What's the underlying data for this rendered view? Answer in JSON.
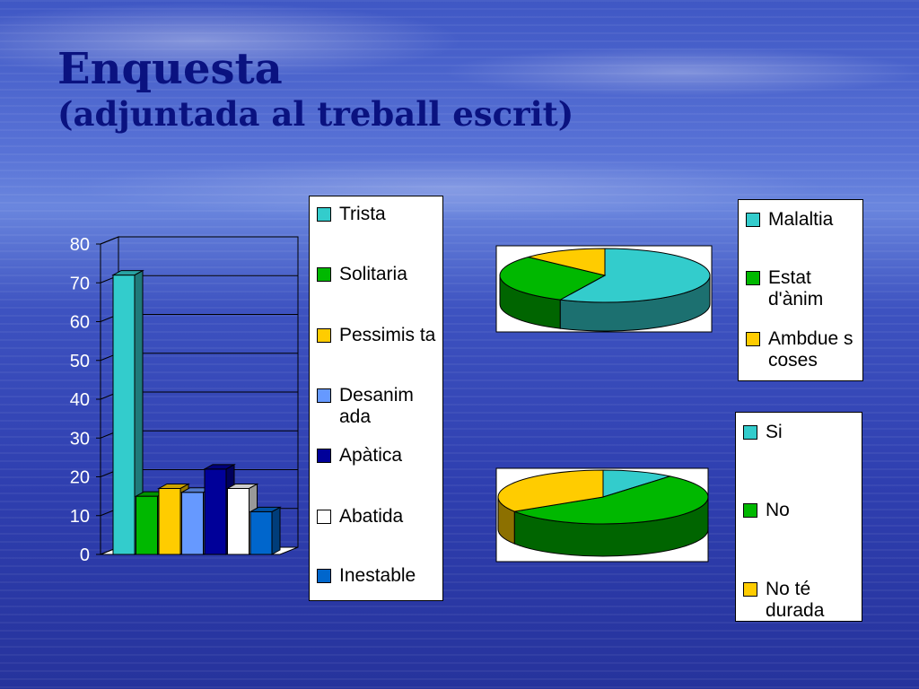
{
  "title": {
    "line1": "Enquesta",
    "line2": "(adjuntada al treball escrit)"
  },
  "chart_data": [
    {
      "type": "bar",
      "categories": [
        "Trista",
        "Solitaria",
        "Pessimista",
        "Desanimada",
        "Apàtica",
        "Abatida",
        "Inestable"
      ],
      "values": [
        72,
        15,
        17,
        16,
        22,
        17,
        11
      ],
      "colors": [
        "#33cccc",
        "#00b800",
        "#ffcc00",
        "#6699ff",
        "#000099",
        "#ffffff",
        "#0066cc"
      ],
      "legend_labels": [
        "Trista",
        "Solitaria",
        "Pessimis ta",
        "Desanim ada",
        "Apàtica",
        "Abatida",
        "Inestable"
      ],
      "ylim": [
        0,
        80
      ],
      "yticks": [
        "0",
        "10",
        "20",
        "30",
        "40",
        "50",
        "60",
        "70",
        "80"
      ],
      "grid": true,
      "legend": "right"
    },
    {
      "type": "pie",
      "labels": [
        "Malaltia",
        "Estat d'ànim",
        "Ambdues coses"
      ],
      "values": [
        57,
        30,
        13
      ],
      "colors": [
        "#33cccc",
        "#00b800",
        "#ffcc00"
      ],
      "legend_labels": [
        "Malaltia",
        "Estat d'ànim",
        "Ambdue s coses"
      ],
      "legend": "right"
    },
    {
      "type": "pie",
      "labels": [
        "Si",
        "No",
        "No té durada"
      ],
      "values": [
        11,
        55,
        34
      ],
      "colors": [
        "#33cccc",
        "#00b800",
        "#ffcc00"
      ],
      "legend_labels": [
        "Si",
        "No",
        "No té durada"
      ],
      "legend": "right"
    }
  ]
}
